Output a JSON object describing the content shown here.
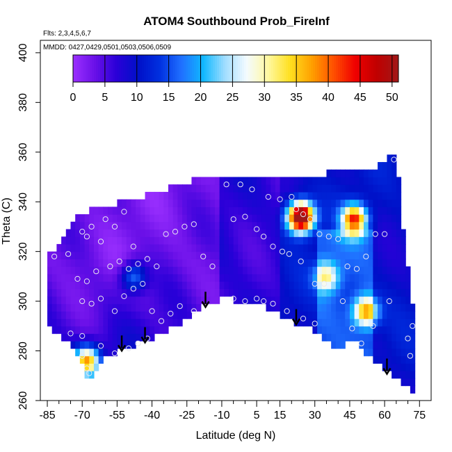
{
  "chart_data": {
    "type": "heatmap",
    "title": "ATOM4 Southbound Prob_FireInf",
    "note_flights": "Flts: 2,3,4,5,6,7",
    "note_dates": "MMDD: 0427,0429,0501,0503,0506,0509",
    "xlabel": "Latitude (deg N)",
    "ylabel": "Theta (C)",
    "xlim": [
      -88,
      80
    ],
    "ylim": [
      260,
      405
    ],
    "x_ticks_major": [
      -85,
      -70,
      -55,
      -40,
      -25,
      -10,
      5,
      15,
      30,
      45,
      60,
      75
    ],
    "x_tick_labels": [
      "-85",
      "-70",
      "-55",
      "-40",
      "-25",
      "-10",
      "5",
      "15",
      "30",
      "45",
      "60",
      "75"
    ],
    "x_ticks_minor": [
      -80,
      -75,
      -65,
      -60,
      -50,
      -45,
      -35,
      -30,
      -20,
      -15,
      -5,
      0,
      10,
      20,
      25,
      35,
      40,
      50,
      55,
      65,
      70
    ],
    "y_ticks": [
      260,
      280,
      300,
      320,
      340,
      360,
      380,
      400
    ],
    "y_tick_labels": [
      "260",
      "280",
      "300",
      "320",
      "340",
      "360",
      "380",
      "400"
    ],
    "colorbar": {
      "range": [
        0,
        51
      ],
      "ticks": [
        0,
        5,
        10,
        15,
        20,
        25,
        30,
        35,
        40,
        45,
        50
      ],
      "tick_labels": [
        "0",
        "5",
        "10",
        "15",
        "20",
        "25",
        "30",
        "35",
        "40",
        "45",
        "50"
      ],
      "colors": [
        "#9b30ff",
        "#6a10e8",
        "#2a00d8",
        "#0010c8",
        "#0030e0",
        "#2070ff",
        "#10b8ff",
        "#a0ddff",
        "#f4fbff",
        "#fff8a0",
        "#ffe020",
        "#ffa000",
        "#ff5000",
        "#f00000",
        "#c00000",
        "#a01818"
      ]
    },
    "domain_top": [
      [
        -85,
        318
      ],
      [
        -80,
        323
      ],
      [
        -75,
        330
      ],
      [
        -70,
        336
      ],
      [
        -60,
        338
      ],
      [
        -50,
        341
      ],
      [
        -40,
        343
      ],
      [
        -30,
        347
      ],
      [
        -20,
        349
      ],
      [
        -10,
        350
      ],
      [
        0,
        351
      ],
      [
        10,
        351
      ],
      [
        20,
        350
      ],
      [
        30,
        351
      ],
      [
        40,
        352
      ],
      [
        50,
        353
      ],
      [
        60,
        355
      ],
      [
        64,
        360
      ],
      [
        65,
        360
      ],
      [
        68,
        330
      ],
      [
        72,
        300
      ],
      [
        73,
        263
      ]
    ],
    "domain_bottom": [
      [
        -85,
        290
      ],
      [
        -78,
        285
      ],
      [
        -73,
        280
      ],
      [
        -68,
        270
      ],
      [
        -66,
        268
      ],
      [
        -63,
        275
      ],
      [
        -55,
        280
      ],
      [
        -45,
        283
      ],
      [
        -30,
        290
      ],
      [
        -20,
        297
      ],
      [
        -10,
        301
      ],
      [
        0,
        300
      ],
      [
        10,
        297
      ],
      [
        20,
        292
      ],
      [
        30,
        288
      ],
      [
        35,
        284
      ],
      [
        40,
        280
      ],
      [
        45,
        285
      ],
      [
        50,
        281
      ],
      [
        55,
        276
      ],
      [
        60,
        272
      ],
      [
        73,
        263
      ]
    ],
    "hotspots": [
      {
        "x": 24,
        "y": 334,
        "value": 50
      },
      {
        "x": 47,
        "y": 333,
        "value": 33
      },
      {
        "x": -68,
        "y": 276,
        "value": 30
      },
      {
        "x": 52,
        "y": 296,
        "value": 24
      },
      {
        "x": -48,
        "y": 310,
        "value": 14
      },
      {
        "x": 35,
        "y": 310,
        "value": 16
      }
    ],
    "arrows_x": [
      -53,
      -43,
      -17,
      22,
      61
    ],
    "sample_points": [
      [
        -82,
        318
      ],
      [
        -76,
        319
      ],
      [
        -70,
        328
      ],
      [
        -68,
        326
      ],
      [
        -66,
        330
      ],
      [
        -62,
        324
      ],
      [
        -56,
        330
      ],
      [
        -52,
        336
      ],
      [
        -48,
        322
      ],
      [
        -60,
        333
      ],
      [
        -72,
        309
      ],
      [
        -68,
        308
      ],
      [
        -64,
        312
      ],
      [
        -58,
        314
      ],
      [
        -54,
        316
      ],
      [
        -50,
        313
      ],
      [
        -46,
        315
      ],
      [
        -42,
        317
      ],
      [
        -38,
        314
      ],
      [
        -34,
        327
      ],
      [
        -30,
        328
      ],
      [
        -26,
        330
      ],
      [
        -22,
        331
      ],
      [
        -18,
        318
      ],
      [
        -14,
        314
      ],
      [
        -70,
        300
      ],
      [
        -66,
        299
      ],
      [
        -62,
        301
      ],
      [
        -56,
        296
      ],
      [
        -52,
        302
      ],
      [
        -48,
        305
      ],
      [
        -44,
        307
      ],
      [
        -40,
        296
      ],
      [
        -36,
        292
      ],
      [
        -32,
        295
      ],
      [
        -28,
        298
      ],
      [
        -22,
        296
      ],
      [
        -75,
        287
      ],
      [
        -70,
        286
      ],
      [
        -62,
        282
      ],
      [
        -56,
        279
      ],
      [
        -50,
        281
      ],
      [
        -46,
        283
      ],
      [
        -42,
        285
      ],
      [
        -70,
        278
      ],
      [
        -68,
        273
      ],
      [
        -67,
        271
      ],
      [
        -5,
        301
      ],
      [
        0,
        300
      ],
      [
        5,
        301
      ],
      [
        8,
        300
      ],
      [
        12,
        299
      ],
      [
        18,
        296
      ],
      [
        25,
        293
      ],
      [
        30,
        291
      ],
      [
        -8,
        347
      ],
      [
        -2,
        347
      ],
      [
        3,
        345
      ],
      [
        10,
        342
      ],
      [
        15,
        341
      ],
      [
        20,
        342
      ],
      [
        22,
        337
      ],
      [
        25,
        335
      ],
      [
        28,
        333
      ],
      [
        -5,
        333
      ],
      [
        0,
        334
      ],
      [
        5,
        329
      ],
      [
        8,
        326
      ],
      [
        12,
        322
      ],
      [
        16,
        320
      ],
      [
        19,
        319
      ],
      [
        24,
        316
      ],
      [
        32,
        327
      ],
      [
        36,
        326
      ],
      [
        40,
        325
      ],
      [
        44,
        314
      ],
      [
        48,
        313
      ],
      [
        52,
        318
      ],
      [
        56,
        327
      ],
      [
        60,
        327
      ],
      [
        64,
        357
      ],
      [
        30,
        307
      ],
      [
        34,
        307
      ],
      [
        42,
        300
      ],
      [
        46,
        289
      ],
      [
        50,
        283
      ],
      [
        55,
        290
      ],
      [
        62,
        300
      ],
      [
        70,
        285
      ],
      [
        71,
        278
      ],
      [
        72,
        290
      ]
    ]
  }
}
